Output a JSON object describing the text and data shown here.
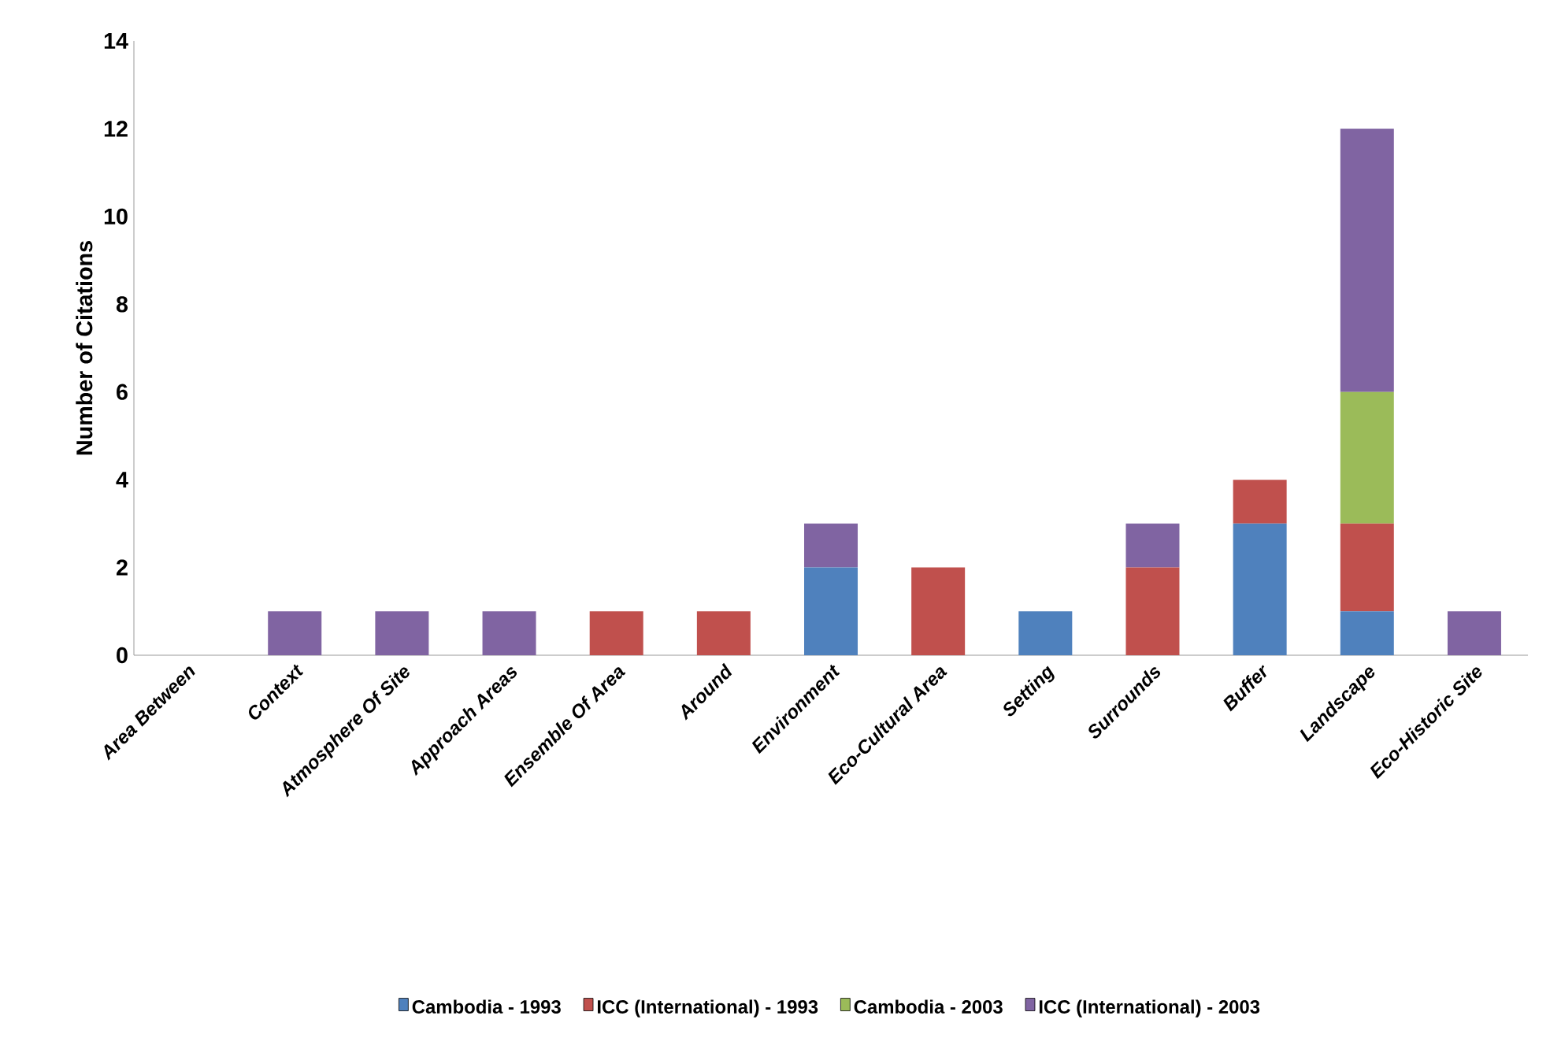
{
  "chart_data": {
    "type": "bar",
    "stacked": true,
    "ylabel": "Number of Citations",
    "categories": [
      "Area Between",
      "Context",
      "Atmosphere Of Site",
      "Approach Areas",
      "Ensemble Of Area",
      "Around",
      "Environment",
      "Eco-Cultural Area",
      "Setting",
      "Surrounds",
      "Buffer",
      "Landscape",
      "Eco-Historic Site"
    ],
    "series": [
      {
        "name": "Cambodia - 1993",
        "color": "#4f81bd",
        "values": [
          0,
          0,
          0,
          0,
          0,
          0,
          2,
          0,
          1,
          0,
          3,
          1,
          0
        ]
      },
      {
        "name": "ICC (International) - 1993",
        "color": "#c0504d",
        "values": [
          0,
          0,
          0,
          0,
          1,
          1,
          0,
          2,
          0,
          2,
          1,
          2,
          0
        ]
      },
      {
        "name": "Cambodia - 2003",
        "color": "#9bbb59",
        "values": [
          0,
          0,
          0,
          0,
          0,
          0,
          0,
          0,
          0,
          0,
          0,
          3,
          0
        ]
      },
      {
        "name": "ICC (International) - 2003",
        "color": "#8064a2",
        "values": [
          0,
          1,
          1,
          1,
          0,
          0,
          1,
          0,
          0,
          1,
          0,
          6,
          1
        ]
      }
    ],
    "ylim": [
      0,
      14
    ],
    "yticks": [
      0,
      2,
      4,
      6,
      8,
      10,
      12,
      14
    ],
    "grid": false,
    "legend": "bottom"
  }
}
